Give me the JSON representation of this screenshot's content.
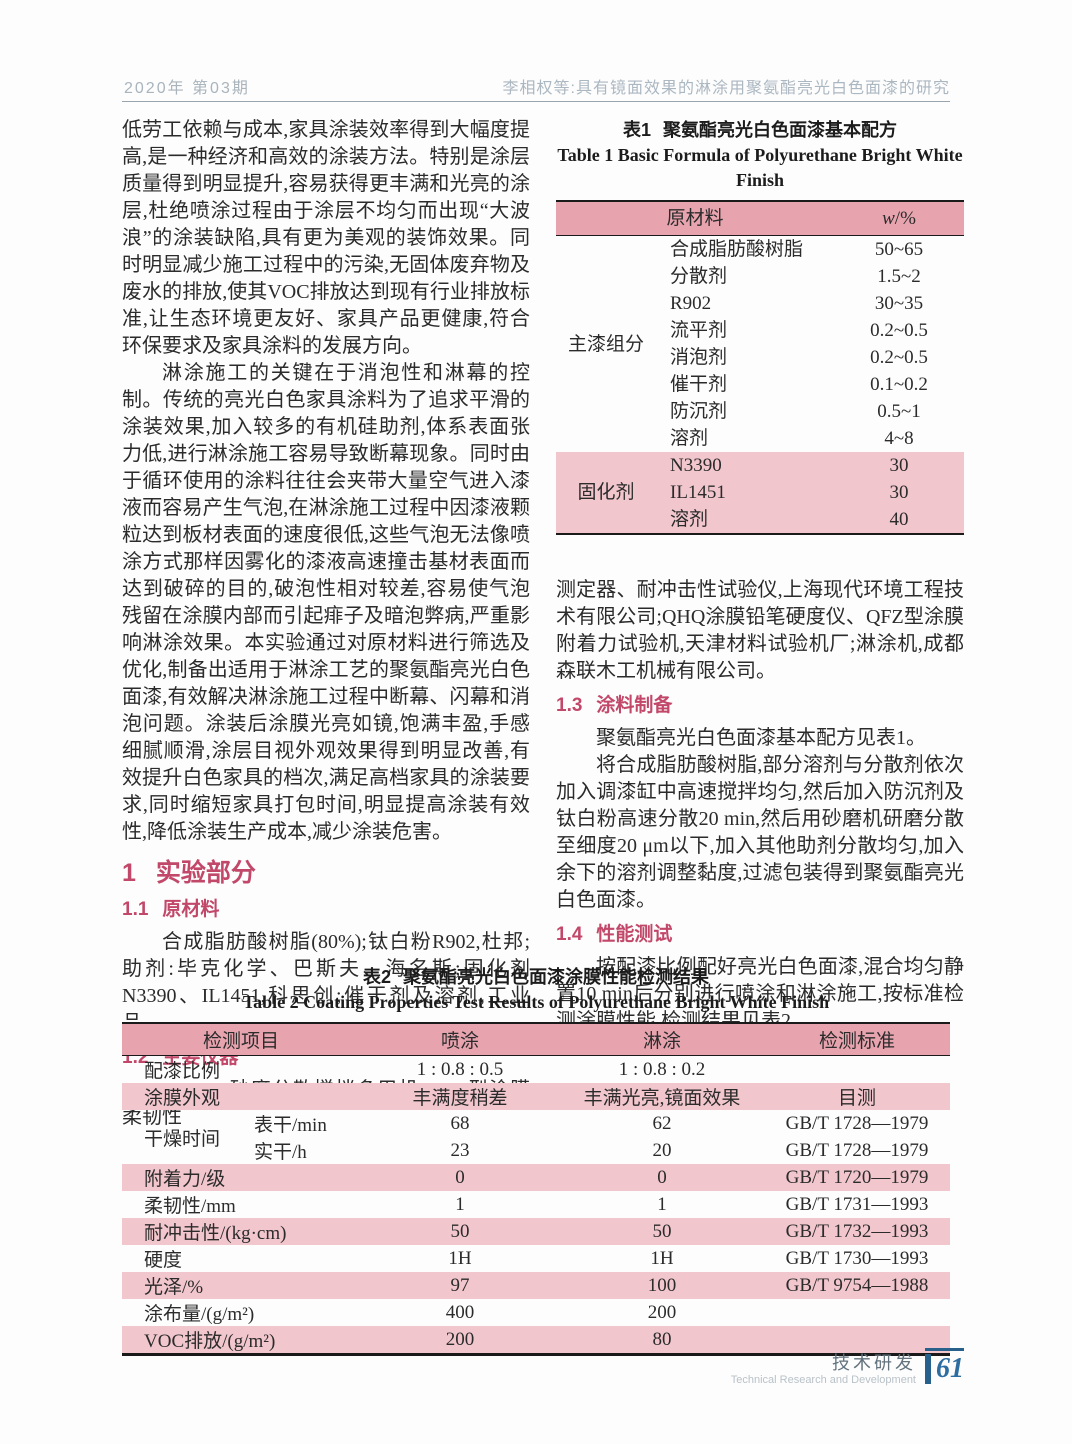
{
  "header": {
    "issue": "2020年  第03期",
    "running_title": "李相权等:具有镜面效果的淋涂用聚氨酯亮光白色面漆的研究"
  },
  "article": {
    "left": {
      "para_continued": "低劳工依赖与成本,家具涂装效率得到大幅度提高,是一种经济和高效的涂装方法。特别是涂层质量得到明显提升,容易获得更丰满和光亮的涂层,杜绝喷涂过程由于涂层不均匀而出现“大波浪”的涂装缺陷,具有更为美观的装饰效果。同时明显减少施工过程中的污染,无固体废弃物及废水的排放,使其VOC排放达到现有行业排放标准,让生态环境更友好、家具产品更健康,符合环保要求及家具涂料的发展方向。",
      "para_intro": "淋涂施工的关键在于消泡性和淋幕的控制。传统的亮光白色家具涂料为了追求平滑的涂装效果,加入较多的有机硅助剂,体系表面张力低,进行淋涂施工容易导致断幕现象。同时由于循环使用的涂料往往会夹带大量空气进入漆液而容易产生气泡,在淋涂施工过程中因漆液颗粒达到板材表面的速度很低,这些气泡无法像喷涂方式那样因雾化的漆液高速撞击基材表面而达到破碎的目的,破泡性相对较差,容易使气泡残留在涂膜内部而引起痱子及暗泡弊病,严重影响淋涂效果。本实验通过对原材料进行筛选及优化,制备出适用于淋涂工艺的聚氨酯亮光白色面漆,有效解决淋涂施工过程中断幕、闪幕和消泡问题。涂装后涂膜光亮如镜,饱满丰盈,手感细腻顺滑,涂层目视外观效果得到明显改善,有效提升白色家具的档次,满足高档家具的涂装要求,同时缩短家具打包时间,明显提高涂装有效性,降低涂装生产成本,减少涂装危害。",
      "section1": {
        "num": "1",
        "title": "实验部分"
      },
      "section11": {
        "num": "1.1",
        "title": "原材料"
      },
      "para_materials": "合成脂肪酸树脂(80%);钛白粉R902,杜邦;助剂:毕克化学、巴斯夫、海名斯;固化剂N3390、IL1451,科思创;催干剂及溶剂,工业品。",
      "section12": {
        "num": "1.2",
        "title": "主要仪器"
      },
      "para_instruments_start": "SFJ-400砂磨分散搅拌多用机、TX型涂膜柔韧性"
    },
    "right": {
      "para_instruments_cont": "测定器、耐冲击性试验仪,上海现代环境工程技术有限公司;QHQ涂膜铅笔硬度仪、QFZ型涂膜附着力试验机,天津材料试验机厂;淋涂机,成都森联木工机械有限公司。",
      "section13": {
        "num": "1.3",
        "title": "涂料制备"
      },
      "para_prep_intro": "聚氨酯亮光白色面漆基本配方见表1。",
      "para_prep_process": "将合成脂肪酸树脂,部分溶剂与分散剂依次加入调漆缸中高速搅拌均匀,然后加入防沉剂及钛白粉高速分散20 min,然后用砂磨机研磨分散至细度20 μm以下,加入其他助剂分散均匀,加入余下的溶剂调整黏度,过滤包装得到聚氨酯亮光白色面漆。",
      "section14": {
        "num": "1.4",
        "title": "性能测试"
      },
      "para_testing": "按配漆比例配好亮光白色面漆,混合均匀静置10 min后分别进行喷涂和淋涂施工,按标准检测涂膜性能,检测结果见表2。"
    }
  },
  "table1": {
    "caption_cn_num": "表1",
    "caption_cn_text": "聚氨酯亮光白色面漆基本配方",
    "caption_en": "Table 1   Basic Formula of Polyurethane Bright White Finish",
    "col_material": "原材料",
    "col_w_var": "w",
    "col_w_unit": "/%",
    "groups": [
      {
        "name": "主漆组分",
        "pink": false,
        "rows": [
          [
            "合成脂肪酸树脂",
            "50~65"
          ],
          [
            "分散剂",
            "1.5~2"
          ],
          [
            "R902",
            "30~35"
          ],
          [
            "流平剂",
            "0.2~0.5"
          ],
          [
            "消泡剂",
            "0.2~0.5"
          ],
          [
            "催干剂",
            "0.1~0.2"
          ],
          [
            "防沉剂",
            "0.5~1"
          ],
          [
            "溶剂",
            "4~8"
          ]
        ]
      },
      {
        "name": "固化剂",
        "pink": true,
        "rows": [
          [
            "N3390",
            "30"
          ],
          [
            "IL1451",
            "30"
          ],
          [
            "溶剂",
            "40"
          ]
        ]
      }
    ]
  },
  "table2": {
    "caption_cn_num": "表2",
    "caption_cn_text": "聚氨酯亮光白色面漆涂膜性能检测结果",
    "caption_en": "Table 2   Coating Properties Test Results of Polyurethane Bright White Finish",
    "headers": [
      "检测项目",
      "喷涂",
      "淋涂",
      "检测标准"
    ],
    "rows": [
      {
        "label": "配漆比例",
        "spray": "1 : 0.8 : 0.5",
        "curtain": "1 : 0.8 : 0.2",
        "standard": "",
        "pink": false
      },
      {
        "label": "涂膜外观",
        "spray": "丰满度稍差",
        "curtain": "丰满光亮,镜面效果",
        "standard": "目测",
        "pink": true
      },
      {
        "label": "干燥时间",
        "pink": false,
        "subs": [
          {
            "name": "表干/min",
            "spray": "68",
            "curtain": "62",
            "standard": "GB/T 1728—1979"
          },
          {
            "name": "实干/h",
            "spray": "23",
            "curtain": "20",
            "standard": "GB/T 1728—1979"
          }
        ]
      },
      {
        "label": "附着力/级",
        "spray": "0",
        "curtain": "0",
        "standard": "GB/T 1720—1979",
        "pink": true
      },
      {
        "label": "柔韧性/mm",
        "spray": "1",
        "curtain": "1",
        "standard": "GB/T 1731—1993",
        "pink": false
      },
      {
        "label": "耐冲击性/(kg·cm)",
        "spray": "50",
        "curtain": "50",
        "standard": "GB/T 1732—1993",
        "pink": true
      },
      {
        "label": "硬度",
        "spray": "1H",
        "curtain": "1H",
        "standard": "GB/T 1730—1993",
        "pink": false
      },
      {
        "label": "光泽/%",
        "spray": "97",
        "curtain": "100",
        "standard": "GB/T 9754—1988",
        "pink": true
      },
      {
        "label": "涂布量/(g/m²)",
        "spray": "400",
        "curtain": "200",
        "standard": "",
        "pink": false
      },
      {
        "label": "VOC排放/(g/m²)",
        "spray": "200",
        "curtain": "80",
        "standard": "",
        "pink": true
      }
    ]
  },
  "footer": {
    "label_cn": "技术研发",
    "label_en": "Technical Research and Development",
    "page_number": "61"
  },
  "colors": {
    "accent_heading": "#c2486a",
    "table_header_pink": "#e7a4af",
    "table_band_pink": "#f2c6cd",
    "running_header_gray": "#aab6c0",
    "footer_blue": "#2e6da0"
  }
}
